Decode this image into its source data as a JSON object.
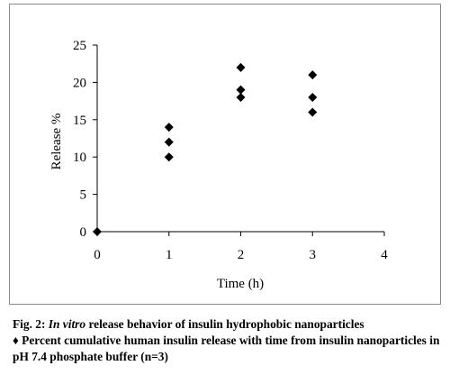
{
  "chart_data": {
    "type": "scatter",
    "title": "",
    "xlabel": "Time (h)",
    "ylabel": "Release %",
    "xlim": [
      0,
      4
    ],
    "ylim": [
      0,
      25
    ],
    "xticks": [
      "0",
      "1",
      "2",
      "3",
      "4"
    ],
    "yticks": [
      "0",
      "5",
      "10",
      "15",
      "20",
      "25"
    ],
    "grid": false,
    "legend": "none",
    "marker": "diamond",
    "marker_color": "#000000",
    "points": [
      {
        "x": 0,
        "y": 0
      },
      {
        "x": 1,
        "y": 10
      },
      {
        "x": 1,
        "y": 12
      },
      {
        "x": 1,
        "y": 14
      },
      {
        "x": 2,
        "y": 18
      },
      {
        "x": 2,
        "y": 19
      },
      {
        "x": 2,
        "y": 22
      },
      {
        "x": 3,
        "y": 16
      },
      {
        "x": 3,
        "y": 18
      },
      {
        "x": 3,
        "y": 21
      }
    ]
  },
  "caption": {
    "fig_label": "Fig. 2: ",
    "title_italic": "In vitro",
    "title_rest": " release behavior of insulin hydrophobic nanoparticles",
    "legend_line": "♦ Percent cumulative human insulin release with time from insulin nanoparticles in pH 7.4 phosphate buffer (n=3)"
  }
}
